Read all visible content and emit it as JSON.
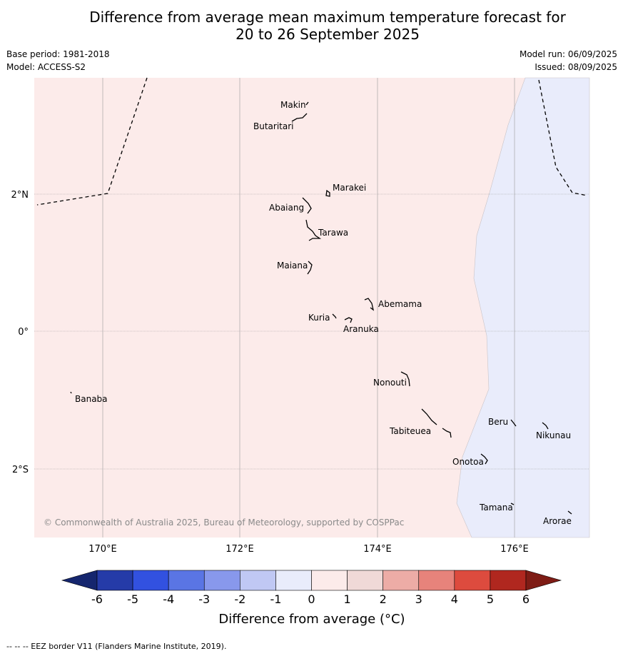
{
  "title_line1": "Difference from average mean maximum temperature forecast for",
  "title_line2": "20 to 26 September 2025",
  "base_period": "Base period: 1981-2018",
  "model": "Model: ACCESS-S2",
  "model_run": "Model run: 06/09/2025",
  "issued": "Issued: 08/09/2025",
  "copyright": "© Commonwealth of Australia 2025, Bureau of Meteorology, supported by COSPPac",
  "lon_labels": [
    "170°E",
    "172°E",
    "174°E",
    "176°E"
  ],
  "lat_labels": [
    "2°N",
    "0°",
    "2°S"
  ],
  "places": [
    {
      "name": "Makin"
    },
    {
      "name": "Butaritari"
    },
    {
      "name": "Marakei"
    },
    {
      "name": "Abaiang"
    },
    {
      "name": "Tarawa"
    },
    {
      "name": "Maiana"
    },
    {
      "name": "Abemama"
    },
    {
      "name": "Kuria"
    },
    {
      "name": "Aranuka"
    },
    {
      "name": "Nonouti"
    },
    {
      "name": "Banaba"
    },
    {
      "name": "Beru"
    },
    {
      "name": "Tabiteuea"
    },
    {
      "name": "Nikunau"
    },
    {
      "name": "Onotoa"
    },
    {
      "name": "Tamana"
    },
    {
      "name": "Arorae"
    }
  ],
  "colorbar": {
    "ticks": [
      "-6",
      "-5",
      "-4",
      "-3",
      "-2",
      "-1",
      "0",
      "1",
      "2",
      "3",
      "4",
      "5",
      "6"
    ],
    "colors": [
      "#253ba8",
      "#3251e0",
      "#5a75e4",
      "#8898ec",
      "#c0c8f4",
      "#e9ecfb",
      "#fcebea",
      "#f0d9d7",
      "#edaca6",
      "#e7837b",
      "#dd4b3e",
      "#b0271f"
    ],
    "under_color": "#15266e",
    "over_color": "#7e1c15",
    "label": "Difference from average (°C)"
  },
  "map_colors": {
    "west_region": "#fcebea",
    "east_region": "#e9ecfb"
  },
  "footer": "--  --  -- EEZ border V11 (Flanders Marine Institute, 2019)."
}
